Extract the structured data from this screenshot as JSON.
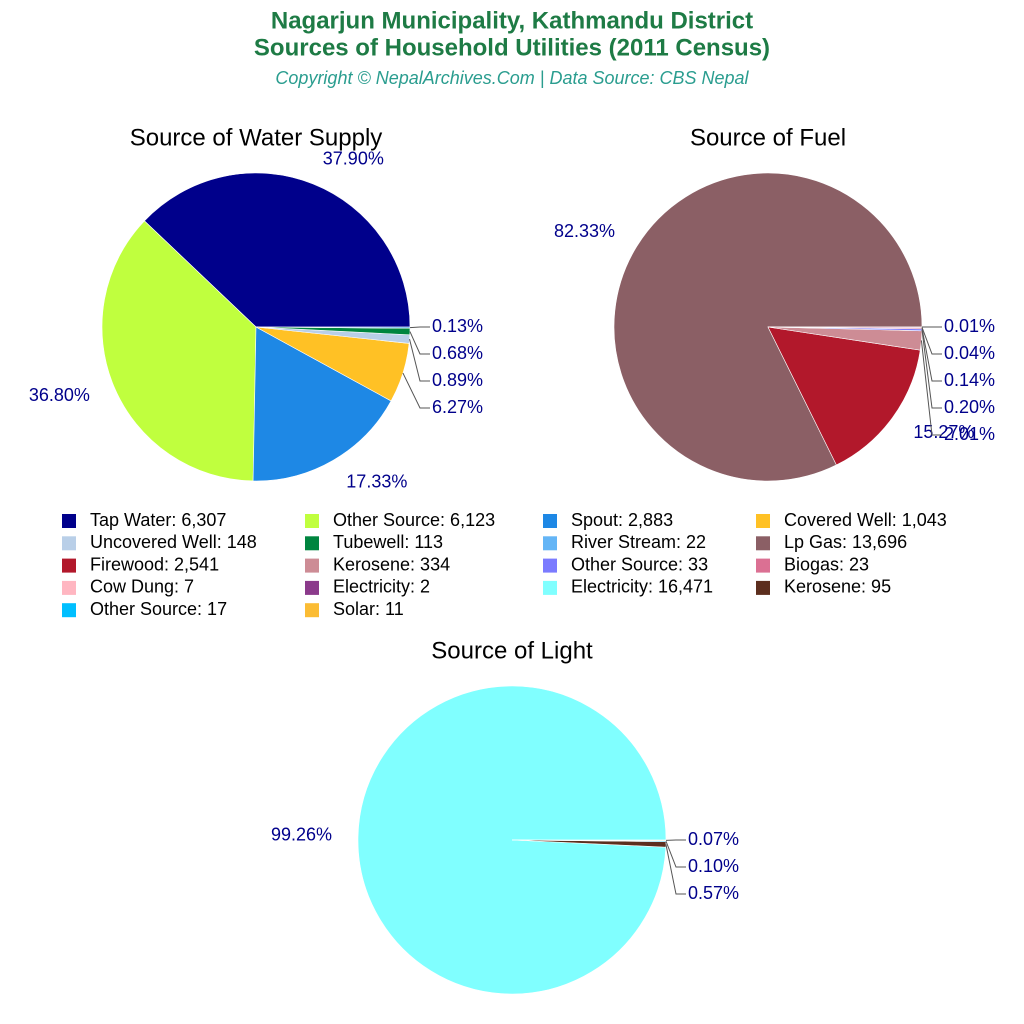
{
  "title": [
    "Nagarjun Municipality, Kathmandu District",
    "Sources of Household Utilities (2011 Census)"
  ],
  "subtitle": "Copyright © NepalArchives.Com | Data Source: CBS Nepal",
  "chart_data": [
    {
      "type": "pie",
      "title": "Source of Water Supply",
      "categories": [
        "Tap Water: 6,307",
        "Other Source: 6,123",
        "Spout: 2,883",
        "Covered Well: 1,043",
        "Uncovered Well: 148",
        "Tubewell: 113",
        "River Stream: 22"
      ],
      "values": [
        37.9,
        36.8,
        17.33,
        6.27,
        0.89,
        0.68,
        0.13
      ],
      "value_labels": [
        "37.90%",
        "36.80%",
        "17.33%",
        "6.27%",
        "0.89%",
        "0.68%",
        "0.13%"
      ],
      "colors": [
        "#00008b",
        "#c0ff3e",
        "#1e88e5",
        "#ffc125",
        "#b9cfe8",
        "#00853f",
        "#64b5f6"
      ]
    },
    {
      "type": "pie",
      "title": "Source of Fuel",
      "categories": [
        "Lp Gas: 13,696",
        "Firewood: 2,541",
        "Kerosene: 334",
        "Other Source: 33",
        "Biogas: 23",
        "Cow Dung: 7",
        "Electricity: 2"
      ],
      "values": [
        82.33,
        15.27,
        2.01,
        0.2,
        0.14,
        0.04,
        0.01
      ],
      "value_labels": [
        "82.33%",
        "15.27%",
        "2.01%",
        "0.20%",
        "0.14%",
        "0.04%",
        "0.01%"
      ],
      "colors": [
        "#8b5f65",
        "#b2182b",
        "#cd8c95",
        "#7b7bff",
        "#db7093",
        "#ffb6c1",
        "#8b3a8b"
      ]
    },
    {
      "type": "pie",
      "title": "Source of Light",
      "categories": [
        "Electricity: 16,471",
        "Kerosene: 95",
        "Other Source: 17",
        "Solar: 11"
      ],
      "values": [
        99.26,
        0.57,
        0.1,
        0.07
      ],
      "value_labels": [
        "99.26%",
        "0.57%",
        "0.10%",
        "0.07%"
      ],
      "colors": [
        "#80ffff",
        "#5c2e1e",
        "#00bfff",
        "#fbbc34"
      ]
    }
  ]
}
